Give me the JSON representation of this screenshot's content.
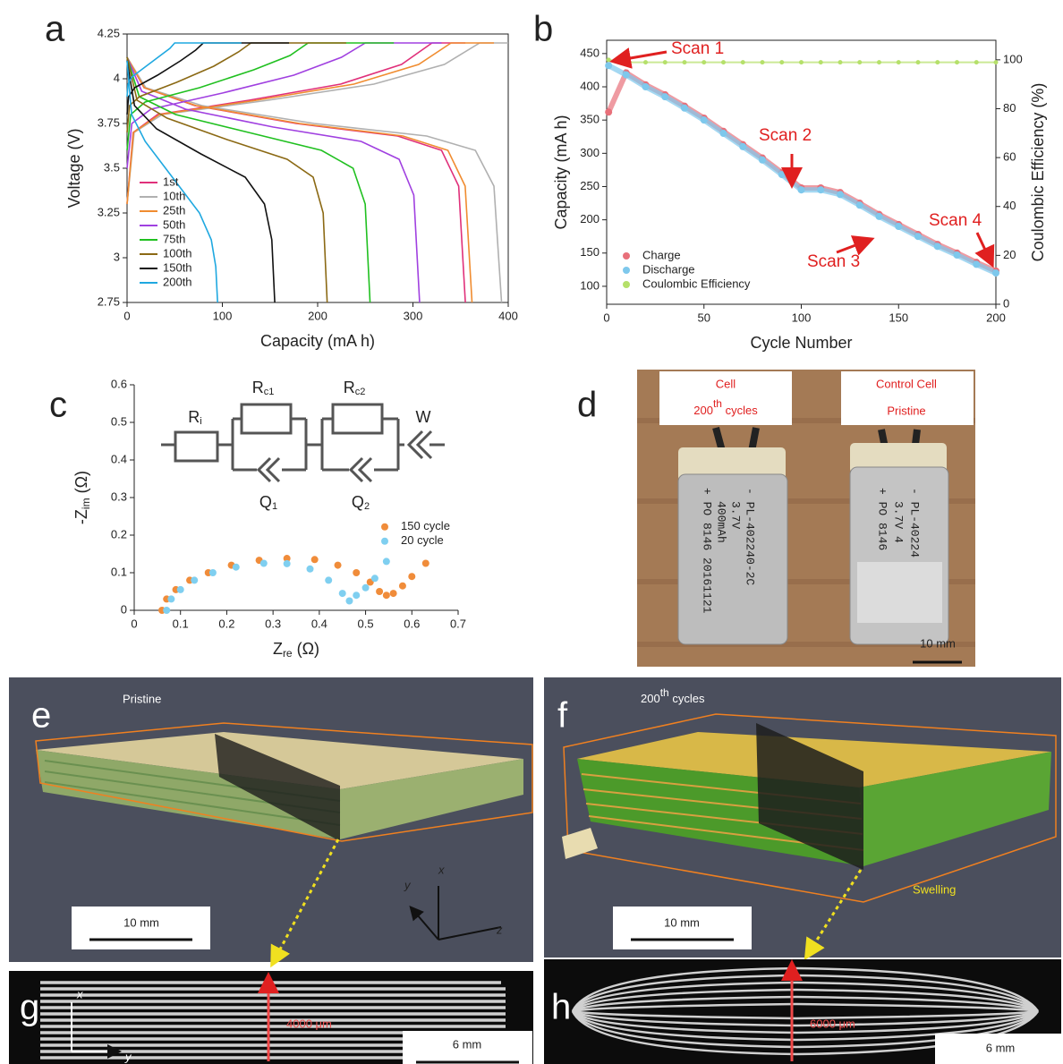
{
  "chart_data": [
    {
      "type": "line",
      "panel": "a",
      "xlabel": "Capacity (mA h)",
      "ylabel": "Voltage (V)",
      "xlim": [
        0,
        400
      ],
      "ylim": [
        2.75,
        4.25
      ],
      "xticks": [
        0,
        100,
        200,
        300,
        400
      ],
      "yticks": [
        2.75,
        3,
        3.25,
        3.5,
        3.75,
        4,
        4.25
      ],
      "legend": "lower left",
      "series": [
        {
          "name": "1st",
          "color": "#e0307a",
          "x": [
            0,
            17.8,
            71,
            177.5,
            284,
            330,
            348,
            355
          ],
          "values": [
            4.12,
            3.95,
            3.85,
            3.75,
            3.68,
            3.6,
            3.4,
            2.75
          ],
          "charge_x": [
            0,
            6.4,
            32,
            128,
            224,
            288,
            320,
            355
          ],
          "charge_values": [
            3.3,
            3.7,
            3.8,
            3.88,
            3.97,
            4.08,
            4.2,
            4.2
          ]
        },
        {
          "name": "10th",
          "color": "#b0b0b0",
          "x": [
            0,
            19.7,
            78.6,
            196.5,
            314.4,
            365.5,
            385,
            393
          ],
          "values": [
            4.12,
            3.95,
            3.85,
            3.75,
            3.68,
            3.6,
            3.4,
            2.75
          ],
          "charge_x": [
            0,
            7.4,
            37,
            148,
            259,
            333,
            370,
            400
          ],
          "charge_values": [
            3.3,
            3.7,
            3.8,
            3.88,
            3.97,
            4.08,
            4.2,
            4.2
          ]
        },
        {
          "name": "25th",
          "color": "#f08c30",
          "x": [
            0,
            18.1,
            72.4,
            181,
            289.6,
            336.7,
            354.8,
            362
          ],
          "values": [
            4.12,
            3.95,
            3.85,
            3.75,
            3.68,
            3.6,
            3.4,
            2.75
          ],
          "charge_x": [
            0,
            6.8,
            34,
            136,
            238,
            306,
            340,
            385
          ],
          "charge_values": [
            3.3,
            3.7,
            3.8,
            3.88,
            3.97,
            4.08,
            4.2,
            4.2
          ]
        },
        {
          "name": "50th",
          "color": "#a040e0",
          "x": [
            0,
            15.4,
            61.4,
            153.5,
            245.6,
            285.5,
            300.9,
            307
          ],
          "values": [
            4.12,
            3.93,
            3.83,
            3.73,
            3.65,
            3.55,
            3.35,
            2.75
          ],
          "charge_x": [
            0,
            5,
            25,
            100,
            175,
            225,
            250,
            330
          ],
          "charge_values": [
            3.5,
            3.75,
            3.83,
            3.92,
            4.02,
            4.12,
            4.2,
            4.2
          ]
        },
        {
          "name": "75th",
          "color": "#20c020",
          "x": [
            0,
            12.8,
            51,
            127.5,
            204,
            237.2,
            249.9,
            255
          ],
          "values": [
            4.12,
            3.9,
            3.8,
            3.7,
            3.6,
            3.5,
            3.3,
            2.75
          ],
          "charge_x": [
            0,
            3.8,
            19,
            76,
            133,
            171,
            190,
            280
          ],
          "charge_values": [
            3.6,
            3.8,
            3.87,
            3.95,
            4.05,
            4.13,
            4.2,
            4.2
          ]
        },
        {
          "name": "100th",
          "color": "#8b6914",
          "x": [
            0,
            10.5,
            42,
            105,
            168,
            195.3,
            205.8,
            210
          ],
          "values": [
            4.12,
            3.88,
            3.78,
            3.66,
            3.55,
            3.45,
            3.25,
            2.75
          ],
          "charge_x": [
            0,
            2.6,
            13,
            52,
            91,
            117,
            130,
            230
          ],
          "charge_values": [
            3.7,
            3.85,
            3.9,
            3.98,
            4.07,
            4.15,
            4.2,
            4.2
          ]
        },
        {
          "name": "150th",
          "color": "#111111",
          "x": [
            0,
            7.8,
            31,
            77.5,
            124,
            144.2,
            151.9,
            155
          ],
          "values": [
            4.1,
            3.85,
            3.72,
            3.58,
            3.45,
            3.3,
            3.1,
            2.75
          ],
          "charge_x": [
            0,
            1.6,
            8,
            32,
            56,
            72,
            80,
            170
          ],
          "charge_values": [
            3.8,
            3.9,
            3.95,
            4.02,
            4.1,
            4.16,
            4.2,
            4.2
          ]
        },
        {
          "name": "200th",
          "color": "#1fa8e0",
          "x": [
            0,
            4.8,
            19,
            47.5,
            76,
            88.4,
            93.1,
            95
          ],
          "values": [
            4.1,
            3.8,
            3.65,
            3.45,
            3.25,
            3.1,
            2.95,
            2.75
          ],
          "charge_x": [
            0,
            1,
            5,
            20,
            35,
            45,
            50,
            120
          ],
          "charge_values": [
            3.9,
            3.97,
            4.01,
            4.07,
            4.13,
            4.17,
            4.2,
            4.2
          ]
        }
      ]
    },
    {
      "type": "scatter",
      "panel": "b",
      "xlabel": "Cycle Number",
      "ylabel": "Capacity (mA h)",
      "y2label": "Coulombic Efficiency (%)",
      "xlim": [
        0,
        200
      ],
      "ylim": [
        73,
        470
      ],
      "y2lim": [
        0,
        108
      ],
      "xticks": [
        0,
        50,
        100,
        150,
        200
      ],
      "yticks": [
        100,
        150,
        200,
        250,
        300,
        350,
        400,
        450
      ],
      "y2ticks": [
        0,
        20,
        40,
        60,
        80,
        100
      ],
      "legend": "lower left",
      "x": [
        1,
        10,
        20,
        30,
        40,
        50,
        60,
        70,
        80,
        90,
        100,
        110,
        120,
        130,
        140,
        150,
        160,
        170,
        180,
        190,
        200
      ],
      "series": [
        {
          "name": "Charge",
          "color": "#e8707a",
          "values": [
            362,
            421,
            403,
            388,
            371,
            353,
            333,
            313,
            293,
            271,
            248,
            248,
            241,
            225,
            208,
            193,
            178,
            163,
            150,
            136,
            123
          ]
        },
        {
          "name": "Discharge",
          "color": "#7ec8ec",
          "values": [
            432,
            418,
            400,
            385,
            368,
            350,
            330,
            310,
            290,
            268,
            245,
            245,
            238,
            222,
            205,
            190,
            175,
            160,
            147,
            133,
            120
          ]
        },
        {
          "name": "Coulombic Efficiency",
          "color": "#b5e06a",
          "axis": "y2",
          "values": [
            100,
            99,
            99,
            99,
            99,
            99,
            99,
            99,
            99,
            99,
            99,
            99,
            99,
            99,
            99,
            99,
            99,
            99,
            99,
            99,
            99
          ]
        }
      ],
      "annotations": [
        "Scan 1",
        "Scan 2",
        "Scan 3",
        "Scan 4"
      ]
    },
    {
      "type": "scatter",
      "panel": "c",
      "xlabel": {
        "main": "Z",
        "sub": "re",
        "rest": " (Ω)"
      },
      "ylabel": {
        "main": "-Z",
        "sub": "im",
        "rest": " (Ω)"
      },
      "xlim": [
        0,
        0.7
      ],
      "ylim": [
        0,
        0.6
      ],
      "xticks": [
        0,
        0.1,
        0.2,
        0.3,
        0.4,
        0.5,
        0.6,
        0.7
      ],
      "yticks": [
        0,
        0.1,
        0.2,
        0.3,
        0.4,
        0.5,
        0.6
      ],
      "legend": "center right",
      "series": [
        {
          "name": "150 cycle",
          "color": "#f08c3a",
          "x": [
            0.06,
            0.07,
            0.09,
            0.12,
            0.16,
            0.21,
            0.27,
            0.33,
            0.39,
            0.44,
            0.48,
            0.51,
            0.53,
            0.545,
            0.56,
            0.58,
            0.6,
            0.63
          ],
          "values": [
            0,
            0.03,
            0.055,
            0.08,
            0.1,
            0.12,
            0.133,
            0.138,
            0.135,
            0.12,
            0.1,
            0.075,
            0.05,
            0.04,
            0.045,
            0.065,
            0.09,
            0.125
          ]
        },
        {
          "name": "20 cycle",
          "color": "#7fcff0",
          "x": [
            0.07,
            0.08,
            0.1,
            0.13,
            0.17,
            0.22,
            0.28,
            0.33,
            0.38,
            0.42,
            0.45,
            0.465,
            0.48,
            0.5,
            0.52,
            0.545
          ],
          "values": [
            0,
            0.03,
            0.055,
            0.08,
            0.1,
            0.115,
            0.125,
            0.124,
            0.11,
            0.08,
            0.045,
            0.025,
            0.04,
            0.06,
            0.085,
            0.13
          ]
        }
      ],
      "circuit": {
        "ri": {
          "main": "R",
          "sub": "i"
        },
        "rc1": {
          "main": "R",
          "sub": "c1"
        },
        "rc2": {
          "main": "R",
          "sub": "c2"
        },
        "w": "W",
        "q1": {
          "main": "Q",
          "sub": "1"
        },
        "q2": {
          "main": "Q",
          "sub": "2"
        }
      }
    }
  ],
  "figure": {
    "d": {
      "panel": "d",
      "cell": "Cell",
      "cycles": {
        "num": "200",
        "sup": "th",
        "rest": " cycles"
      },
      "control": "Control Cell",
      "pristine": "Pristine",
      "scale": "10 mm",
      "print1": [
        "- PL-402240-2C",
        "3.7V",
        "400mAh",
        "+ PO 8146 20161121"
      ],
      "print2": [
        "- PL-40224",
        "3.7V  4",
        "+ PO 8146"
      ]
    },
    "e": {
      "panel": "e",
      "title": "Pristine",
      "scale": "10 mm",
      "axes": [
        "x",
        "y",
        "z"
      ]
    },
    "f": {
      "panel": "f",
      "title": {
        "num": "200",
        "sup": "th",
        "rest": " cycles"
      },
      "note": "Swelling",
      "scale": "10 mm"
    },
    "g": {
      "panel": "g",
      "thickness": "4000 μm",
      "scale": "6 mm",
      "axes": [
        "x",
        "y"
      ]
    },
    "h": {
      "panel": "h",
      "thickness": "6000 μm",
      "scale": "6 mm"
    }
  }
}
